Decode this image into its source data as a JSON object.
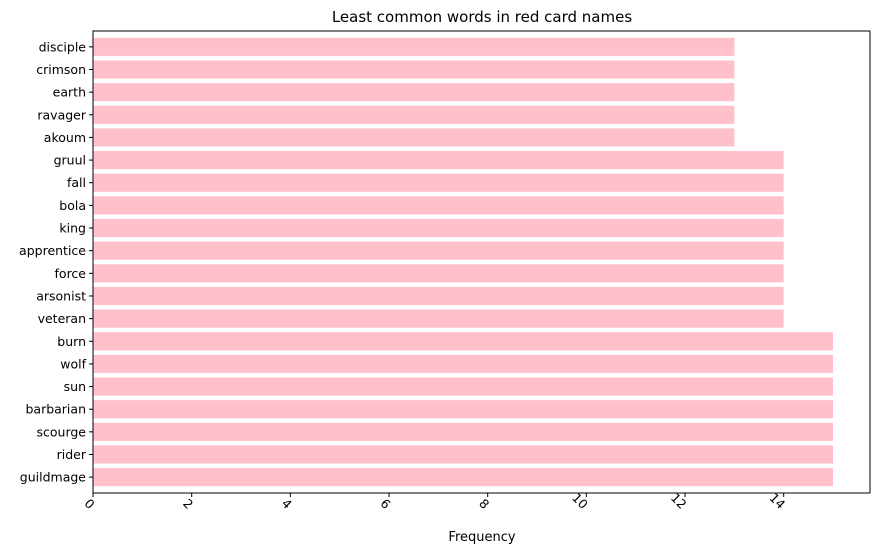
{
  "chart_data": {
    "type": "bar",
    "orientation": "horizontal",
    "title": "Least common words in red card names",
    "xlabel": "Frequency",
    "ylabel": "",
    "xlim": [
      0,
      15.75
    ],
    "x_ticks": [
      0,
      2,
      4,
      6,
      8,
      10,
      12,
      14
    ],
    "x_tick_rotation": 45,
    "grid": false,
    "bar_color": "#ffc0cb",
    "categories": [
      "guildmage",
      "rider",
      "scourge",
      "barbarian",
      "sun",
      "wolf",
      "burn",
      "veteran",
      "arsonist",
      "force",
      "apprentice",
      "king",
      "bola",
      "fall",
      "gruul",
      "akoum",
      "ravager",
      "earth",
      "crimson",
      "disciple"
    ],
    "values": [
      15,
      15,
      15,
      15,
      15,
      15,
      15,
      14,
      14,
      14,
      14,
      14,
      14,
      14,
      14,
      13,
      13,
      13,
      13,
      13
    ]
  }
}
